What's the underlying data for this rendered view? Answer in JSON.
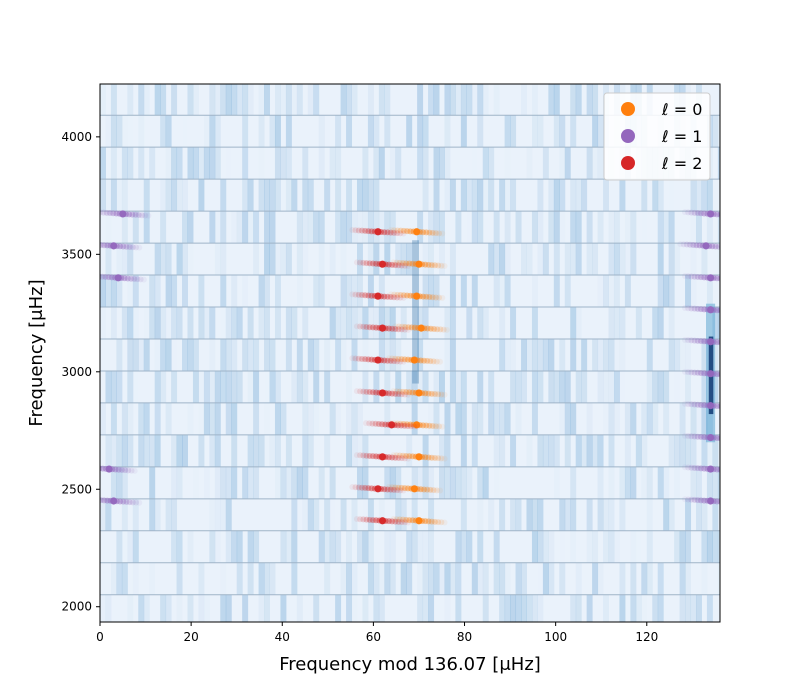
{
  "chart_data": {
    "type": "scatter",
    "title": "",
    "xlabel": "Frequency mod 136.07 [μHz]",
    "ylabel": "Frequency [μHz]",
    "xlim": [
      0,
      136.07
    ],
    "ylim": [
      1935,
      4225
    ],
    "xticks": [
      0,
      20,
      40,
      60,
      80,
      100,
      120
    ],
    "yticks": [
      2000,
      2500,
      3000,
      3500,
      4000
    ],
    "grid": false,
    "legend_position": "top-right",
    "background": "echelle power spectrum heatmap (blue)",
    "series": [
      {
        "name": "ℓ = 0",
        "color": "#ff7f0e",
        "points": [
          [
            70,
            2366
          ],
          [
            69,
            2502
          ],
          [
            70,
            2638
          ],
          [
            69.5,
            2774
          ],
          [
            70,
            2910
          ],
          [
            69,
            3050
          ],
          [
            70.5,
            3186
          ],
          [
            69.5,
            3322
          ],
          [
            70,
            3458
          ],
          [
            69.5,
            3596
          ]
        ]
      },
      {
        "name": "ℓ = 1",
        "color": "#9467bd",
        "points": [
          [
            3,
            2450
          ],
          [
            2,
            2586
          ],
          [
            4,
            3400
          ],
          [
            3,
            3536
          ],
          [
            5,
            3672
          ],
          [
            134,
            2586
          ],
          [
            134,
            2450
          ],
          [
            134,
            3400
          ],
          [
            133,
            3536
          ],
          [
            134,
            3672
          ],
          [
            134,
            3264
          ],
          [
            134,
            3128
          ],
          [
            134,
            2992
          ],
          [
            134,
            2856
          ],
          [
            134,
            2720
          ]
        ]
      },
      {
        "name": "ℓ = 2",
        "color": "#d62728",
        "points": [
          [
            62,
            2366
          ],
          [
            61,
            2502
          ],
          [
            62,
            2638
          ],
          [
            64,
            2774
          ],
          [
            62,
            2910
          ],
          [
            61,
            3050
          ],
          [
            62,
            3186
          ],
          [
            61,
            3322
          ],
          [
            62,
            3458
          ],
          [
            61,
            3596
          ]
        ]
      }
    ]
  }
}
